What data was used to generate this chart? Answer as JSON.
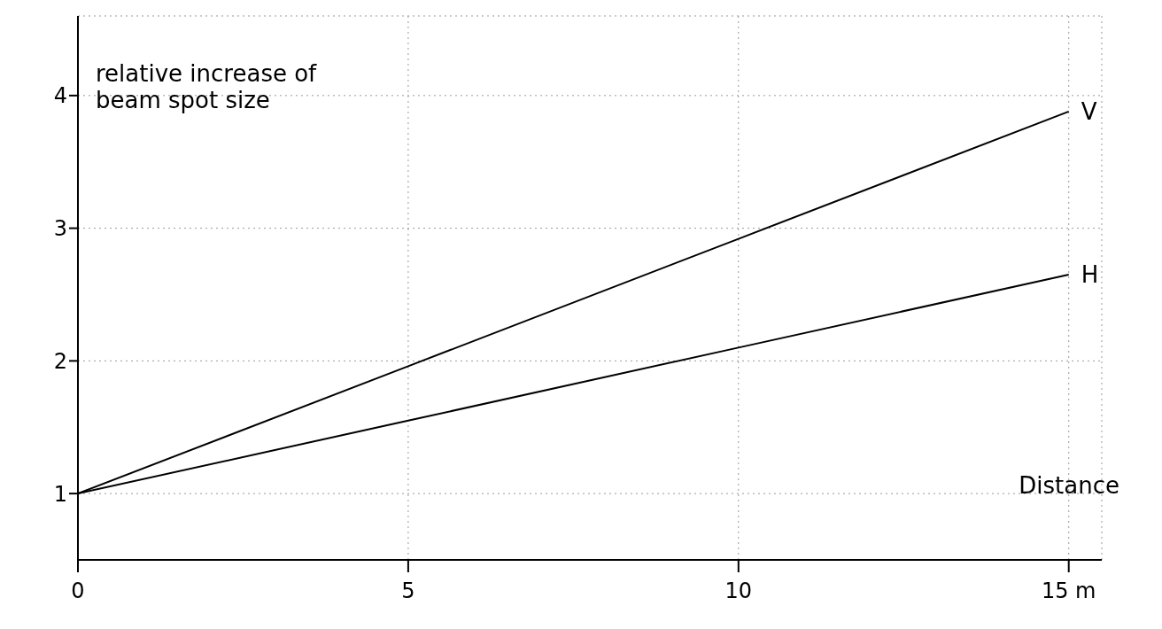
{
  "chart_data": {
    "type": "line",
    "ylabel": "relative increase of beam spot size",
    "xlabel": "Distance",
    "x": [
      0,
      5,
      10,
      15
    ],
    "series": [
      {
        "name": "V",
        "color": "#000000",
        "values": [
          1,
          1.96,
          2.92,
          3.88
        ]
      },
      {
        "name": "H",
        "color": "#000000",
        "values": [
          1,
          1.55,
          2.1,
          2.65
        ]
      }
    ],
    "xlim": [
      0,
      15.5
    ],
    "xticks": [
      0,
      5,
      10,
      {
        "value": 15,
        "label": "15 m"
      }
    ],
    "ylim": [
      0.5,
      4.6
    ],
    "yticks": [
      1,
      2,
      3,
      4
    ],
    "grid": true,
    "line_style": "solid",
    "marker": "none"
  }
}
